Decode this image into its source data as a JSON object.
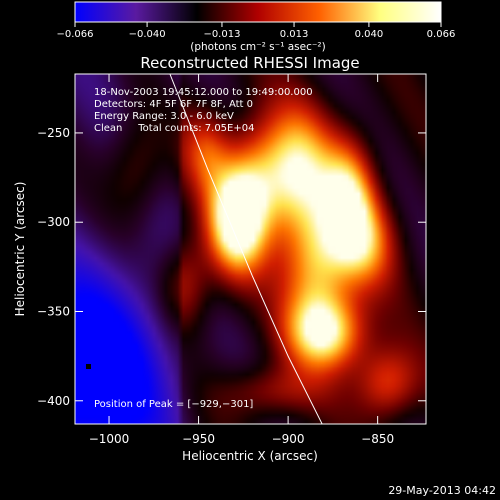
{
  "chart_data": {
    "type": "heatmap",
    "title": "Reconstructed RHESSI Image",
    "xlabel": "Heliocentric X (arcsec)",
    "ylabel": "Heliocentric Y (arcsec)",
    "xlim": [
      -1019,
      -823
    ],
    "ylim": [
      -413,
      -217
    ],
    "xticks": [
      -1000,
      -950,
      -900,
      -850
    ],
    "yticks": [
      -250,
      -300,
      -350,
      -400
    ],
    "xtick_labels": [
      "−1000",
      "−950",
      "−900",
      "−850"
    ],
    "ytick_labels": [
      "−250",
      "−300",
      "−350",
      "−400"
    ],
    "colorbar": {
      "range": [
        -0.066,
        0.066
      ],
      "ticks": [
        -0.066,
        -0.04,
        -0.013,
        0.013,
        0.04,
        0.066
      ],
      "tick_labels": [
        "−0.066",
        "−0.040",
        "−0.013",
        "0.013",
        "0.040",
        "0.066"
      ],
      "unit_label": "(photons cm⁻² s⁻¹ asec⁻²)",
      "colors": [
        "#0000ff",
        "#5a1aa0",
        "#000000",
        "#b00000",
        "#ff6000",
        "#ffff80",
        "#ffffff"
      ]
    },
    "annotations": {
      "time_range": "18-Nov-2003 19:45:12.000 to 19:49:00.000",
      "detectors": "Detectors: 4F 5F 6F 7F 8F, Att 0",
      "energy": "Energy Range: 3.0 - 6.0 keV",
      "method": "Clean     Total counts: 7.05E+04",
      "peak": "Position of Peak = [−929,−301]"
    },
    "peak_position": [
      -929,
      -301
    ],
    "limb_curve": [
      [
        -966,
        -217
      ],
      [
        -945,
        -270
      ],
      [
        -920,
        -330
      ],
      [
        -900,
        -375
      ],
      [
        -881,
        -413
      ]
    ],
    "sources": [
      {
        "x": -929,
        "y": -301,
        "amp": 1.0,
        "sx": 11,
        "sy": 20
      },
      {
        "x": -916,
        "y": -275,
        "amp": 0.65,
        "sx": 14,
        "sy": 22
      },
      {
        "x": -893,
        "y": -272,
        "amp": 0.7,
        "sx": 13,
        "sy": 25
      },
      {
        "x": -884,
        "y": -325,
        "amp": 0.75,
        "sx": 13,
        "sy": 25
      },
      {
        "x": -878,
        "y": -362,
        "amp": 0.85,
        "sx": 15,
        "sy": 14
      },
      {
        "x": -866,
        "y": -285,
        "amp": 0.75,
        "sx": 10,
        "sy": 22
      },
      {
        "x": -857,
        "y": -312,
        "amp": 0.55,
        "sx": 12,
        "sy": 18
      },
      {
        "x": -845,
        "y": -390,
        "amp": 0.55,
        "sx": 12,
        "sy": 14
      },
      {
        "x": -958,
        "y": -335,
        "amp": 0.45,
        "sx": 10,
        "sy": 18
      },
      {
        "x": -946,
        "y": -260,
        "amp": 0.4,
        "sx": 9,
        "sy": 16
      },
      {
        "x": -985,
        "y": -270,
        "amp": 0.35,
        "sx": 12,
        "sy": 22
      },
      {
        "x": -910,
        "y": -395,
        "amp": 0.35,
        "sx": 18,
        "sy": 10
      }
    ]
  },
  "footer": {
    "date": "29-May-2013 04:42"
  }
}
